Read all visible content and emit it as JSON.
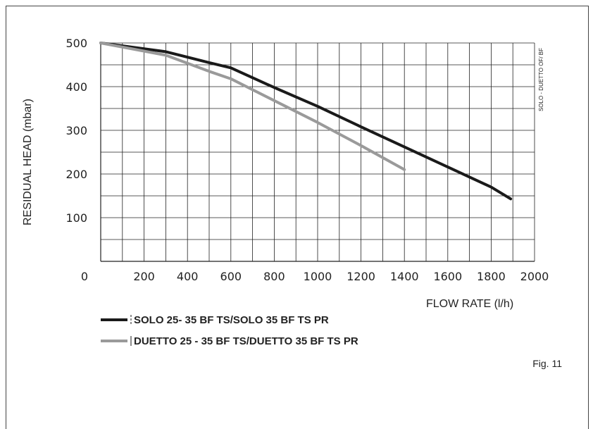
{
  "chart_data": {
    "type": "line",
    "ylabel": "RESIDUAL HEAD (mbar)",
    "xlabel": "FLOW RATE (l/h)",
    "side_note": "SOLO - DUETTO OF/ BF",
    "figure_label": "Fig. 11",
    "origin_label": "0",
    "xlim": [
      0,
      2000
    ],
    "ylim": [
      0,
      500
    ],
    "x_ticks": [
      200,
      400,
      600,
      800,
      1000,
      1200,
      1400,
      1600,
      1800,
      2000
    ],
    "y_ticks": [
      100,
      200,
      300,
      400,
      500
    ],
    "grid": true,
    "grid_x_step": 100,
    "grid_y_step": 50,
    "legend_position": "bottom-left",
    "series": [
      {
        "name": "SOLO 25- 35 BF TS/SOLO 35 BF TS PR",
        "color": "#1a1a1a",
        "x": [
          0,
          300,
          500,
          600,
          800,
          1000,
          1200,
          1400,
          1600,
          1800,
          1890
        ],
        "y": [
          500,
          480,
          455,
          443,
          398,
          355,
          308,
          262,
          216,
          170,
          143
        ]
      },
      {
        "name": "DUETTO 25 - 35 BF TS/DUETTO 35 BF TS PR",
        "color": "#9a9a9a",
        "x": [
          0,
          300,
          500,
          600,
          800,
          1000,
          1200,
          1400
        ],
        "y": [
          500,
          472,
          435,
          418,
          368,
          318,
          265,
          210
        ]
      }
    ]
  }
}
